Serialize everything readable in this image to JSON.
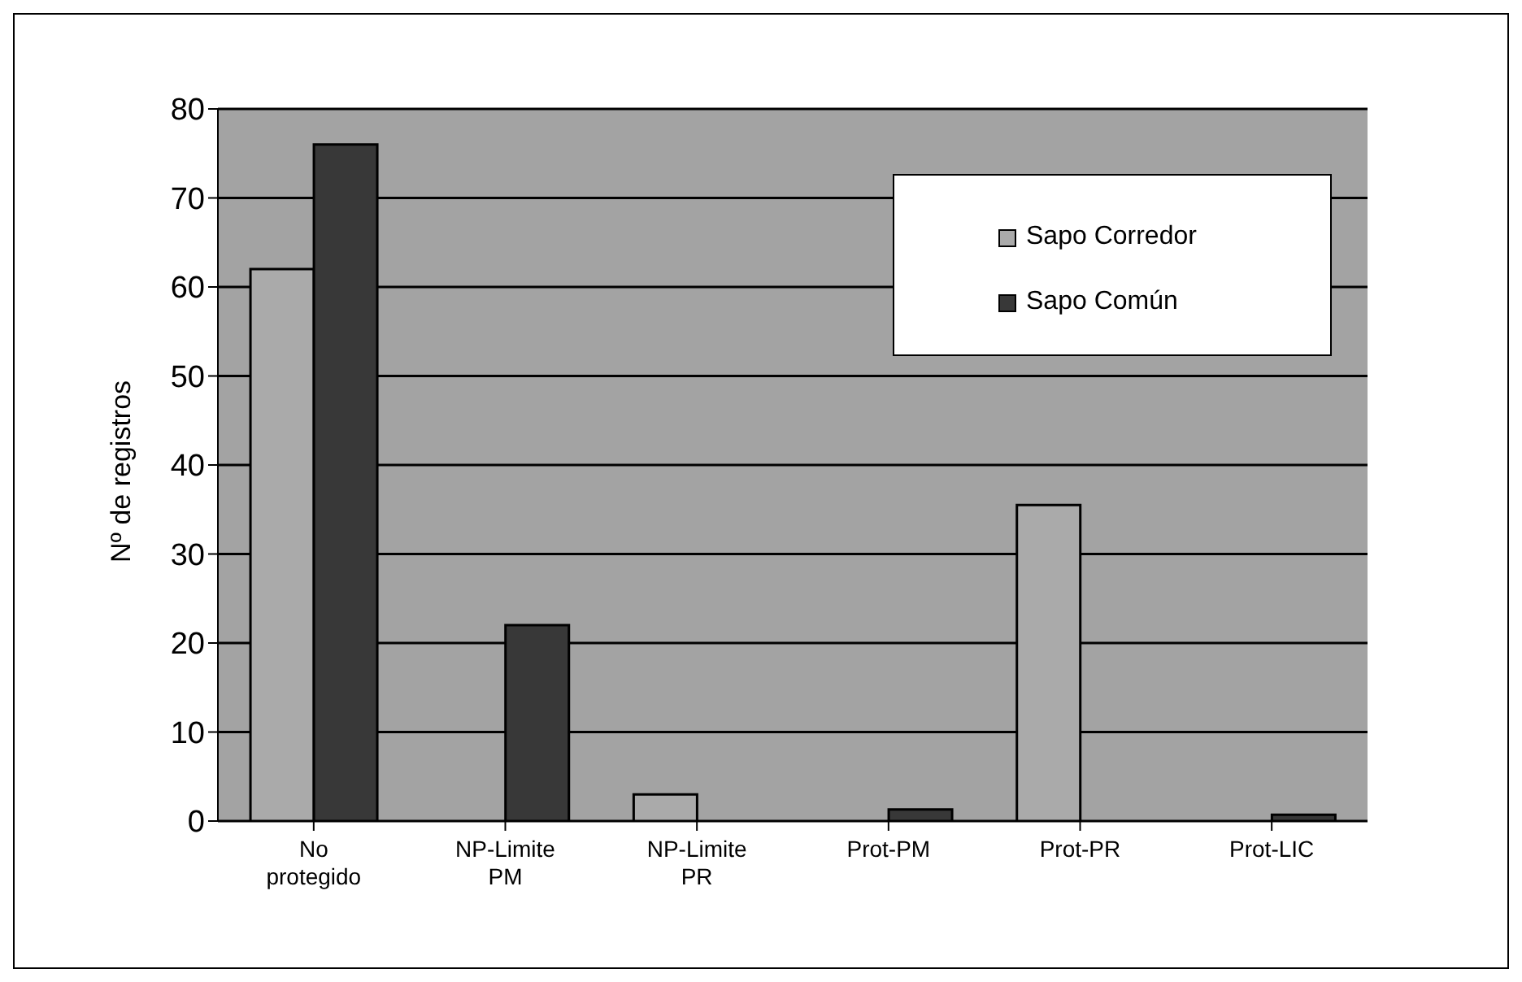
{
  "chart_data": {
    "type": "bar",
    "ylabel": "Nº de registros",
    "categories": [
      "No protegido",
      "NP-Limite PM",
      "NP-Limite PR",
      "Prot-PM",
      "Prot-PR",
      "Prot-LIC"
    ],
    "series": [
      {
        "name": "Sapo Corredor",
        "color": "#aaaaaa",
        "values": [
          62,
          0,
          3,
          0,
          35.5,
          0
        ]
      },
      {
        "name": "Sapo Común",
        "color": "#383838",
        "values": [
          76,
          22,
          0,
          1.3,
          0,
          0.7
        ]
      }
    ],
    "ylim": [
      0,
      80
    ],
    "yticks": [
      0,
      10,
      20,
      30,
      40,
      50,
      60,
      70,
      80
    ],
    "grid": "y",
    "legend": "top right"
  }
}
